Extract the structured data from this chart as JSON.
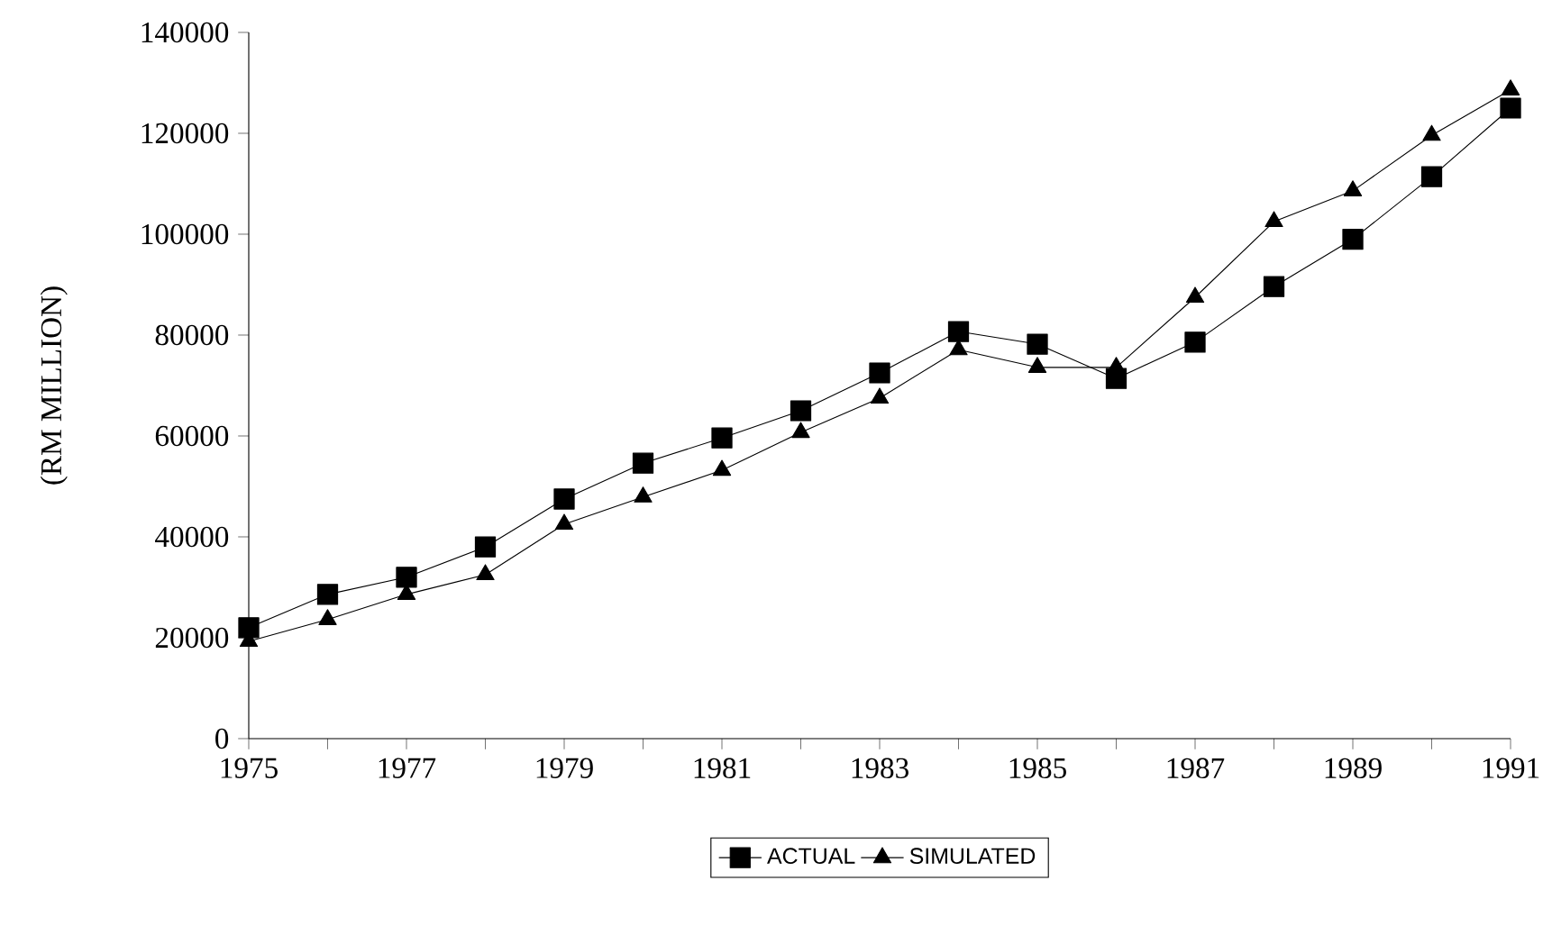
{
  "chart_data": {
    "type": "line",
    "ylabel": "(RM MILLION)",
    "x": [
      1975,
      1976,
      1977,
      1978,
      1979,
      1980,
      1981,
      1982,
      1983,
      1984,
      1985,
      1986,
      1987,
      1988,
      1989,
      1990,
      1991
    ],
    "series": [
      {
        "name": "ACTUAL",
        "color": "#000000",
        "marker": "square",
        "values": [
          22000,
          28600,
          32000,
          38000,
          47500,
          54600,
          59600,
          65000,
          72500,
          80700,
          78200,
          71400,
          78600,
          89600,
          99000,
          111400,
          125000
        ]
      },
      {
        "name": "SIMULATED",
        "color": "#000000",
        "marker": "triangle",
        "values": [
          19300,
          23600,
          28600,
          32500,
          42500,
          47900,
          53200,
          60700,
          67500,
          77100,
          73600,
          73600,
          87500,
          102500,
          108600,
          119600,
          128600
        ]
      }
    ],
    "xlim": [
      1975,
      1991
    ],
    "xticks": [
      1975,
      {
        "value": 1976,
        "label": null
      },
      1977,
      {
        "value": 1978,
        "label": null
      },
      1979,
      {
        "value": 1980,
        "label": null
      },
      1981,
      {
        "value": 1982,
        "label": null
      },
      1983,
      {
        "value": 1984,
        "label": null
      },
      1985,
      {
        "value": 1986,
        "label": null
      },
      1987,
      {
        "value": 1988,
        "label": null
      },
      1989,
      {
        "value": 1990,
        "label": null
      },
      1991
    ],
    "ylim": [
      0,
      140000
    ],
    "yticks": [
      0,
      20000,
      40000,
      60000,
      80000,
      100000,
      120000,
      140000
    ],
    "grid": false,
    "legend": "bottom",
    "line_style": "solid"
  }
}
